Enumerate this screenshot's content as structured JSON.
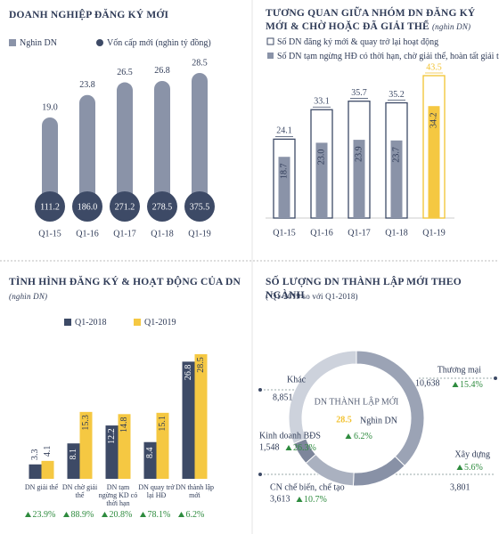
{
  "chart_data": [
    {
      "type": "bar",
      "title": "DOANH NGHIỆP ĐĂNG KÝ MỚI",
      "categories": [
        "Q1-15",
        "Q1-16",
        "Q1-17",
        "Q1-18",
        "Q1-19"
      ],
      "series": [
        {
          "name": "Nghìn DN",
          "color": "#8a93a8",
          "values": [
            19,
            23.8,
            26.5,
            26.8,
            28.5
          ],
          "value_labels": [
            "19.0",
            "23.8",
            "26.5",
            "26.8",
            "28.5"
          ]
        },
        {
          "name": "Vốn cấp mới (nghìn tỷ đồng)",
          "color": "#3d4a66",
          "marker": "circle",
          "values": [
            111.2,
            186,
            271.2,
            278.5,
            375.5
          ],
          "value_labels": [
            "111.2",
            "186.0",
            "271.2",
            "278.5",
            "375.5"
          ]
        }
      ]
    },
    {
      "type": "bar",
      "overlap": true,
      "title": "TƯƠNG QUAN GIỮA NHÓM DN ĐĂNG KÝ MỚI & CHỜ HOẶC ĐÃ GIẢI THỂ",
      "subtitle": "(nghìn DN)",
      "categories": [
        "Q1-15",
        "Q1-16",
        "Q1-17",
        "Q1-18",
        "Q1-19"
      ],
      "series": [
        {
          "name": "Số DN đăng ký mới & quay trở lại hoạt động",
          "color": "#ffffff",
          "edge_colors": [
            "#3d4a66",
            "#3d4a66",
            "#3d4a66",
            "#3d4a66",
            "#f2c230"
          ],
          "values": [
            24.1,
            33.1,
            35.7,
            35.2,
            43.5
          ]
        },
        {
          "name": "Số DN tạm ngừng HĐ có thời hạn, chờ giải thể, hoàn tất giải thể",
          "color": "#8a93a8",
          "colors": [
            "#8a93a8",
            "#8a93a8",
            "#8a93a8",
            "#8a93a8",
            "#f5c842"
          ],
          "values": [
            18.7,
            23,
            23.9,
            23.7,
            34.2
          ],
          "value_labels": [
            "18.7",
            "23.0",
            "23.9",
            "23.7",
            "34.2"
          ]
        }
      ]
    },
    {
      "type": "bar",
      "title": "TÌNH HÌNH ĐĂNG KÝ & HOẠT ĐỘNG CỦA DN",
      "subtitle": "(nghìn DN)",
      "categories": [
        "DN giải thể",
        "DN chờ giải thể",
        "DN tạm ngừng KD có thời hạn",
        "DN quay trở lại HĐ",
        "DN thành lập mới"
      ],
      "series": [
        {
          "name": "Q1-2018",
          "color": "#3d4a66",
          "values": [
            3.3,
            8.1,
            12.2,
            8.4,
            26.8
          ]
        },
        {
          "name": "Q1-2019",
          "color": "#f5c842",
          "values": [
            4.1,
            15.3,
            14.8,
            15.1,
            28.5
          ]
        }
      ],
      "changes": {
        "color": "#2e8b3e",
        "values": [
          23.9,
          88.9,
          20.8,
          78.1,
          6.2
        ],
        "value_labels": [
          "23.9%",
          "88.9%",
          "20.8%",
          "78.1%",
          "6.2%"
        ]
      }
    },
    {
      "type": "pie",
      "donut": true,
      "title": "SỐ LƯỢNG DN THÀNH LẬP MỚI THEO NGÀNH",
      "subtitle": "( Q1-2019 so với Q1-2018)",
      "categories": [
        "Thương mại",
        "Xây dựng",
        "CN chế biến, chế tạo",
        "Kinh doanh BĐS",
        "Khác"
      ],
      "values": [
        10638,
        3801,
        3613,
        1548,
        8851
      ],
      "value_labels": [
        "10,638",
        "3,801",
        "3,613",
        "1,548",
        "8,851"
      ],
      "colors": [
        "#9ba3b5",
        "#8891a6",
        "#aab1c0",
        "#7d869b",
        "#cdd2dc"
      ],
      "changes": {
        "color": "#2e8b3e",
        "values": [
          15.4,
          5.6,
          10.7,
          26.3,
          null
        ],
        "value_labels": [
          "15.4%",
          "5.6%",
          "10.7%",
          "26.3%",
          null
        ]
      },
      "center_title": "DN THÀNH LẬP MỚI",
      "total": 28.5,
      "total_unit": "Nghìn DN",
      "total_color": "#f2c230",
      "total_change": 6.2,
      "total_change_label": "6.2%"
    }
  ]
}
